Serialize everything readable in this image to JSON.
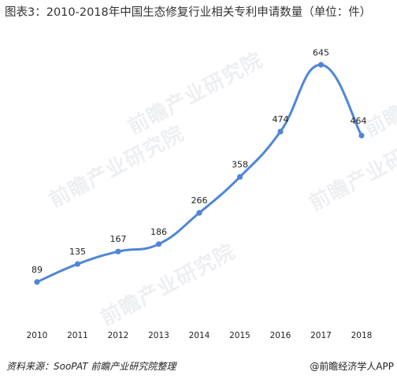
{
  "chart_data": {
    "type": "line",
    "title": "图表3：2010-2018年中国生态修复行业相关专利申请数量（单位：件）",
    "categories": [
      "2010",
      "2011",
      "2012",
      "2013",
      "2014",
      "2015",
      "2016",
      "2017",
      "2018"
    ],
    "series": [
      {
        "values": [
          89,
          135,
          167,
          186,
          266,
          358,
          474,
          645,
          464
        ],
        "color": "#4f86d6"
      }
    ],
    "ylim": [
      0,
      700
    ],
    "grid": false,
    "legend": "none"
  },
  "footer": {
    "source": "资料来源：SooPAT 前瞻产业研究院整理",
    "brand": "@前瞻经济学人APP"
  },
  "watermark": {
    "text": "前瞻产业研究院"
  }
}
